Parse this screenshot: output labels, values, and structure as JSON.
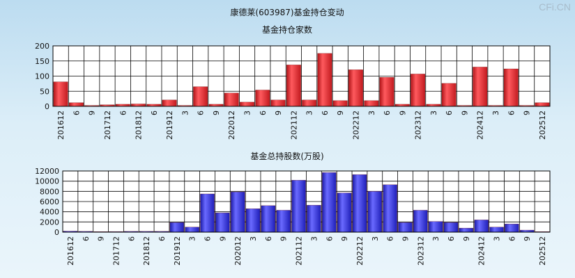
{
  "title": "康德莱(603987)基金持仓变动",
  "watermark": "CFi.CN",
  "chart_data": [
    {
      "type": "bar",
      "title": "基金持仓家数",
      "ylim": [
        0,
        200
      ],
      "yticks": [
        0,
        50,
        100,
        150,
        200
      ],
      "color": "#e8242a",
      "categories": [
        "201612",
        "6",
        "9",
        "201712",
        "6",
        "201812",
        "6",
        "201912",
        "3",
        "6",
        "9",
        "202012",
        "3",
        "6",
        "9",
        "202112",
        "3",
        "6",
        "9",
        "202212",
        "3",
        "6",
        "9",
        "202312",
        "3",
        "6",
        "9",
        "202412",
        "3",
        "6",
        "9",
        "202512"
      ],
      "values": [
        81,
        12,
        3,
        5,
        7,
        8,
        7,
        21,
        3,
        65,
        7,
        44,
        14,
        54,
        21,
        137,
        21,
        175,
        19,
        121,
        19,
        96,
        7,
        107,
        7,
        76,
        3,
        130,
        3,
        124,
        3,
        12
      ]
    },
    {
      "type": "bar",
      "title": "基金总持股数(万股)",
      "ylim": [
        0,
        12000
      ],
      "yticks": [
        0,
        2000,
        4000,
        6000,
        8000,
        10000,
        12000
      ],
      "color": "#2a2ad8",
      "categories": [
        "201612",
        "6",
        "9",
        "201712",
        "6",
        "201812",
        "6",
        "201912",
        "3",
        "6",
        "9",
        "202012",
        "3",
        "6",
        "9",
        "202112",
        "3",
        "6",
        "9",
        "202212",
        "3",
        "6",
        "9",
        "202312",
        "3",
        "6",
        "9",
        "202412",
        "3",
        "6",
        "9",
        "202512"
      ],
      "values": [
        200,
        150,
        100,
        120,
        150,
        150,
        150,
        1900,
        1000,
        7500,
        3800,
        7900,
        4600,
        5200,
        4300,
        10200,
        5300,
        11700,
        7700,
        11300,
        8000,
        9300,
        1900,
        4300,
        2100,
        1900,
        800,
        2400,
        1000,
        1600,
        400,
        100
      ]
    }
  ]
}
